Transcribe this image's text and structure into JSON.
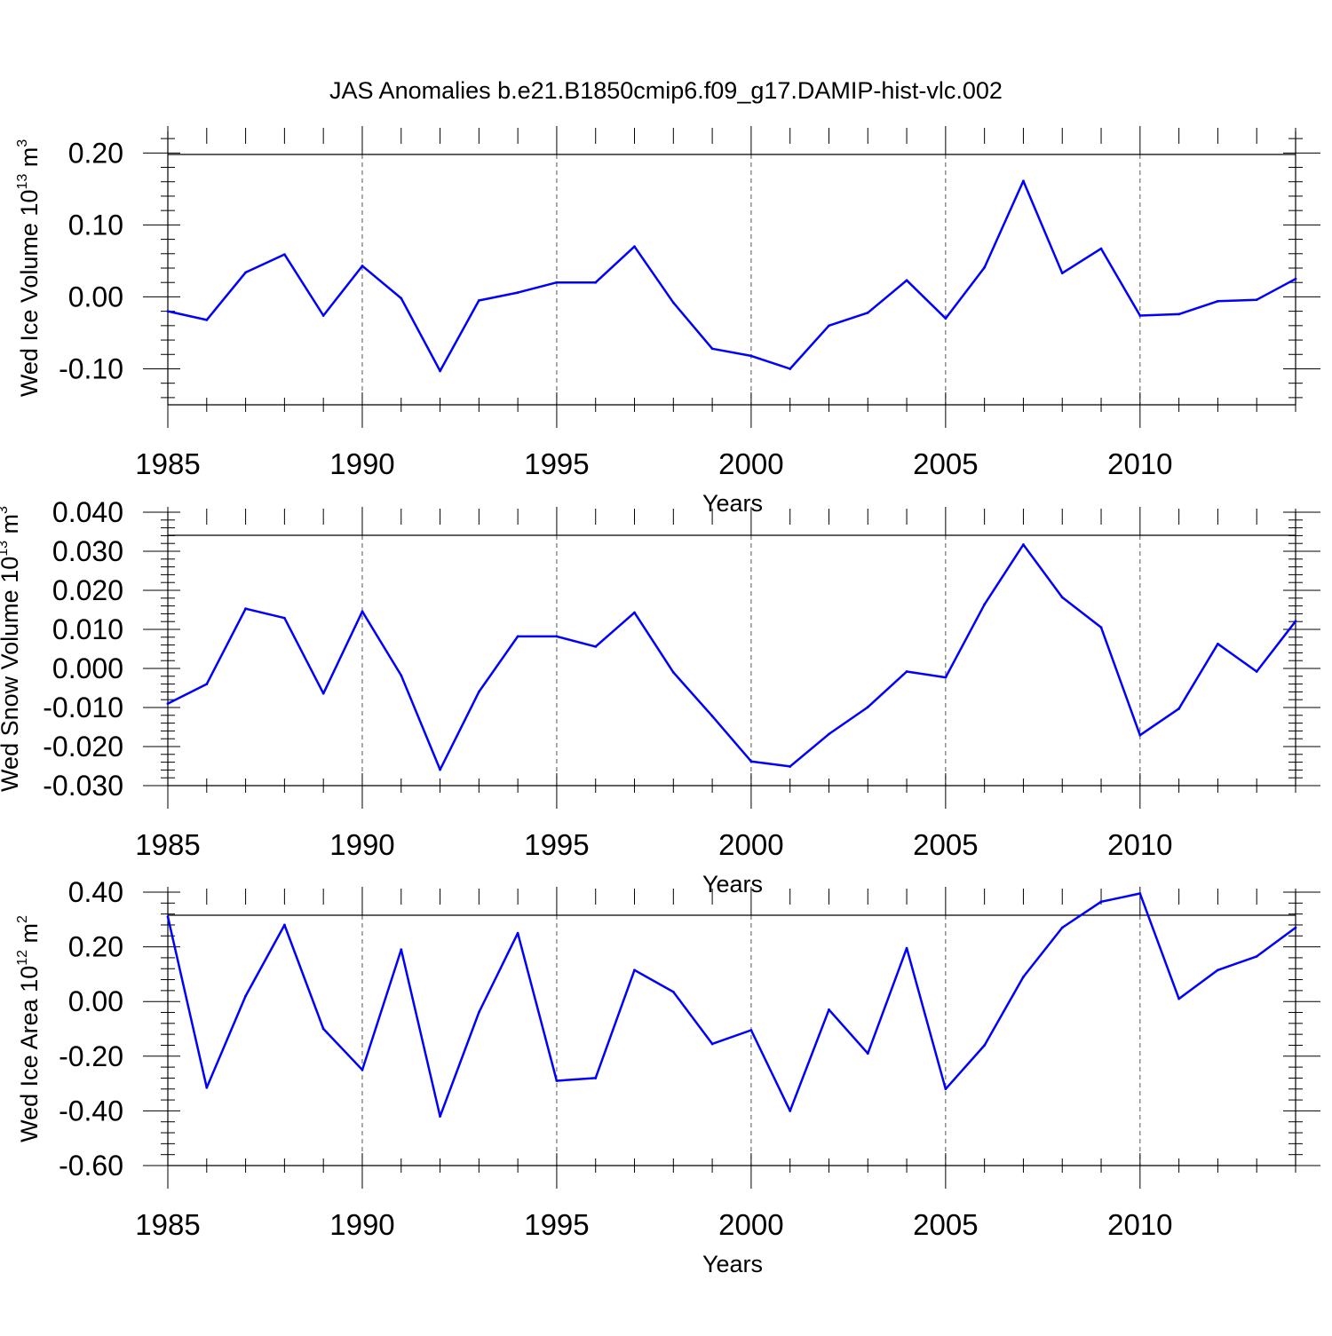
{
  "chart_data": [
    {
      "type": "line",
      "title": "JAS Anomalies b.e21.B1850cmip6.f09_g17.DAMIP-hist-vlc.002",
      "xlabel": "Years",
      "ylabel_main": "Wed Ice Volume 10",
      "ylabel_exp": "13",
      "ylabel_unit": " m",
      "ylabel_unit_exp": "3",
      "xlim": [
        1985,
        2014
      ],
      "ylim": [
        -0.15,
        0.23
      ],
      "xticks": [
        1985,
        1990,
        1995,
        2000,
        2005,
        2010
      ],
      "xtick_labels": [
        "1985",
        "1990",
        "1995",
        "2000",
        "2005",
        "2010"
      ],
      "yticks": [
        0.2,
        0.1,
        0.0,
        -0.1
      ],
      "ytick_labels": [
        "0.20",
        "0.10",
        "0.00",
        "-0.10"
      ],
      "grid": "vertical dashed at major x ticks",
      "series": [
        {
          "name": "ice volume",
          "color": "#0000ff",
          "x": [
            1985,
            1986,
            1987,
            1988,
            1989,
            1990,
            1991,
            1992,
            1993,
            1994,
            1995,
            1996,
            1997,
            1998,
            1999,
            2000,
            2001,
            2002,
            2003,
            2004,
            2005,
            2006,
            2007,
            2008,
            2009,
            2010,
            2011,
            2012,
            2013,
            2014
          ],
          "values": [
            -0.02,
            -0.032,
            0.034,
            0.059,
            -0.026,
            0.043,
            -0.002,
            -0.103,
            -0.005,
            0.006,
            0.02,
            0.02,
            0.07,
            -0.008,
            -0.072,
            -0.082,
            -0.1,
            -0.04,
            -0.022,
            0.023,
            -0.03,
            0.041,
            0.161,
            0.033,
            0.067,
            -0.026,
            -0.024,
            -0.006,
            -0.004,
            0.025
          ]
        }
      ]
    },
    {
      "type": "line",
      "xlabel": "Years",
      "ylabel_main": "Wed Snow Volume 10",
      "ylabel_exp": "13",
      "ylabel_unit": " m",
      "ylabel_unit_exp": "3",
      "xlim": [
        1985,
        2014
      ],
      "ylim": [
        -0.03,
        0.04
      ],
      "xticks": [
        1985,
        1990,
        1995,
        2000,
        2005,
        2010
      ],
      "xtick_labels": [
        "1985",
        "1990",
        "1995",
        "2000",
        "2005",
        "2010"
      ],
      "yticks": [
        0.04,
        0.03,
        0.02,
        0.01,
        0.0,
        -0.01,
        -0.02,
        -0.03
      ],
      "ytick_labels": [
        "0.040",
        "0.030",
        "0.020",
        "0.010",
        "0.000",
        "-0.010",
        "-0.020",
        "-0.030"
      ],
      "grid": "vertical dashed at major x ticks",
      "series": [
        {
          "name": "snow volume",
          "color": "#0000ff",
          "x": [
            1985,
            1986,
            1987,
            1988,
            1989,
            1990,
            1991,
            1992,
            1993,
            1994,
            1995,
            1996,
            1997,
            1998,
            1999,
            2000,
            2001,
            2002,
            2003,
            2004,
            2005,
            2006,
            2007,
            2008,
            2009,
            2010,
            2011,
            2012,
            2013,
            2014
          ],
          "values": [
            -0.009,
            -0.004,
            0.0153,
            0.0129,
            -0.0064,
            0.0146,
            -0.0018,
            -0.0259,
            -0.006,
            0.0082,
            0.0082,
            0.0056,
            0.0143,
            -0.001,
            -0.0122,
            -0.0238,
            -0.0251,
            -0.0168,
            -0.0099,
            -0.0008,
            -0.0023,
            0.0164,
            0.0317,
            0.0182,
            0.0105,
            -0.0171,
            -0.0103,
            0.0063,
            -0.0008,
            0.0121
          ]
        }
      ]
    },
    {
      "type": "line",
      "xlabel": "Years",
      "ylabel_main": "Wed Ice Area 10",
      "ylabel_exp": "12",
      "ylabel_unit": " m",
      "ylabel_unit_exp": "2",
      "xlim": [
        1985,
        2014
      ],
      "ylim": [
        -0.6,
        0.4
      ],
      "xticks": [
        1985,
        1990,
        1995,
        2000,
        2005,
        2010
      ],
      "xtick_labels": [
        "1985",
        "1990",
        "1995",
        "2000",
        "2005",
        "2010"
      ],
      "yticks": [
        0.4,
        0.2,
        0.0,
        -0.2,
        -0.4,
        -0.6
      ],
      "ytick_labels": [
        "0.40",
        "0.20",
        "0.00",
        "-0.20",
        "-0.40",
        "-0.60"
      ],
      "grid": "vertical dashed at major x ticks",
      "series": [
        {
          "name": "ice area",
          "color": "#0000ff",
          "x": [
            1985,
            1986,
            1987,
            1988,
            1989,
            1990,
            1991,
            1992,
            1993,
            1994,
            1995,
            1996,
            1997,
            1998,
            1999,
            2000,
            2001,
            2002,
            2003,
            2004,
            2005,
            2006,
            2007,
            2008,
            2009,
            2010,
            2011,
            2012,
            2013,
            2014
          ],
          "values": [
            0.31,
            -0.315,
            0.02,
            0.28,
            -0.1,
            -0.25,
            0.19,
            -0.42,
            -0.04,
            0.25,
            -0.29,
            -0.28,
            0.115,
            0.035,
            -0.155,
            -0.105,
            -0.4,
            -0.03,
            -0.19,
            0.195,
            -0.32,
            -0.16,
            0.09,
            0.27,
            0.365,
            0.395,
            0.01,
            0.115,
            0.165,
            0.27
          ]
        }
      ]
    }
  ]
}
